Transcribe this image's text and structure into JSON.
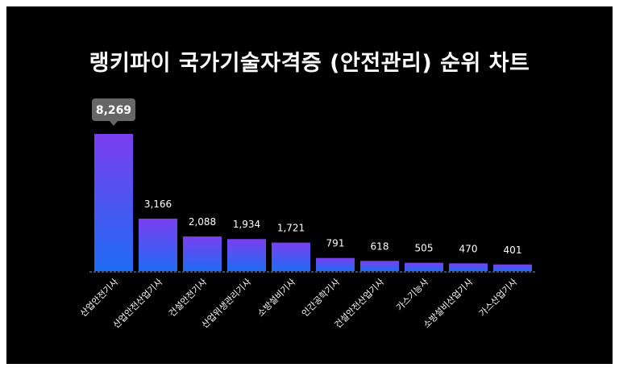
{
  "chart_data": {
    "type": "bar",
    "title": "랭키파이 국가기술자격증 (안전관리) 순위 차트",
    "xlabel": "",
    "ylabel": "",
    "categories": [
      "산업안전기사",
      "산업안전산업기사",
      "건설안전기사",
      "산업위생관리기사",
      "소방설비기사",
      "인간공학기사",
      "건설안전산업기사",
      "가스기능사",
      "소방설비산업기사",
      "가스산업기사"
    ],
    "values": [
      8269,
      3166,
      2088,
      1934,
      1721,
      791,
      618,
      505,
      470,
      401
    ],
    "value_labels": [
      "8,269",
      "3,166",
      "2,088",
      "1,934",
      "1,721",
      "791",
      "618",
      "505",
      "470",
      "401"
    ],
    "highlight_index": 0,
    "ylim": [
      0,
      8269
    ],
    "grid": false,
    "legend": "none"
  },
  "colors": {
    "background": "#000000",
    "frame": "#ffffff",
    "bar_top": "#7a3ff0",
    "bar_bottom": "#1f6cf2",
    "baseline": "#5aa0ff",
    "callout": "#666666",
    "text": "#ffffff"
  }
}
